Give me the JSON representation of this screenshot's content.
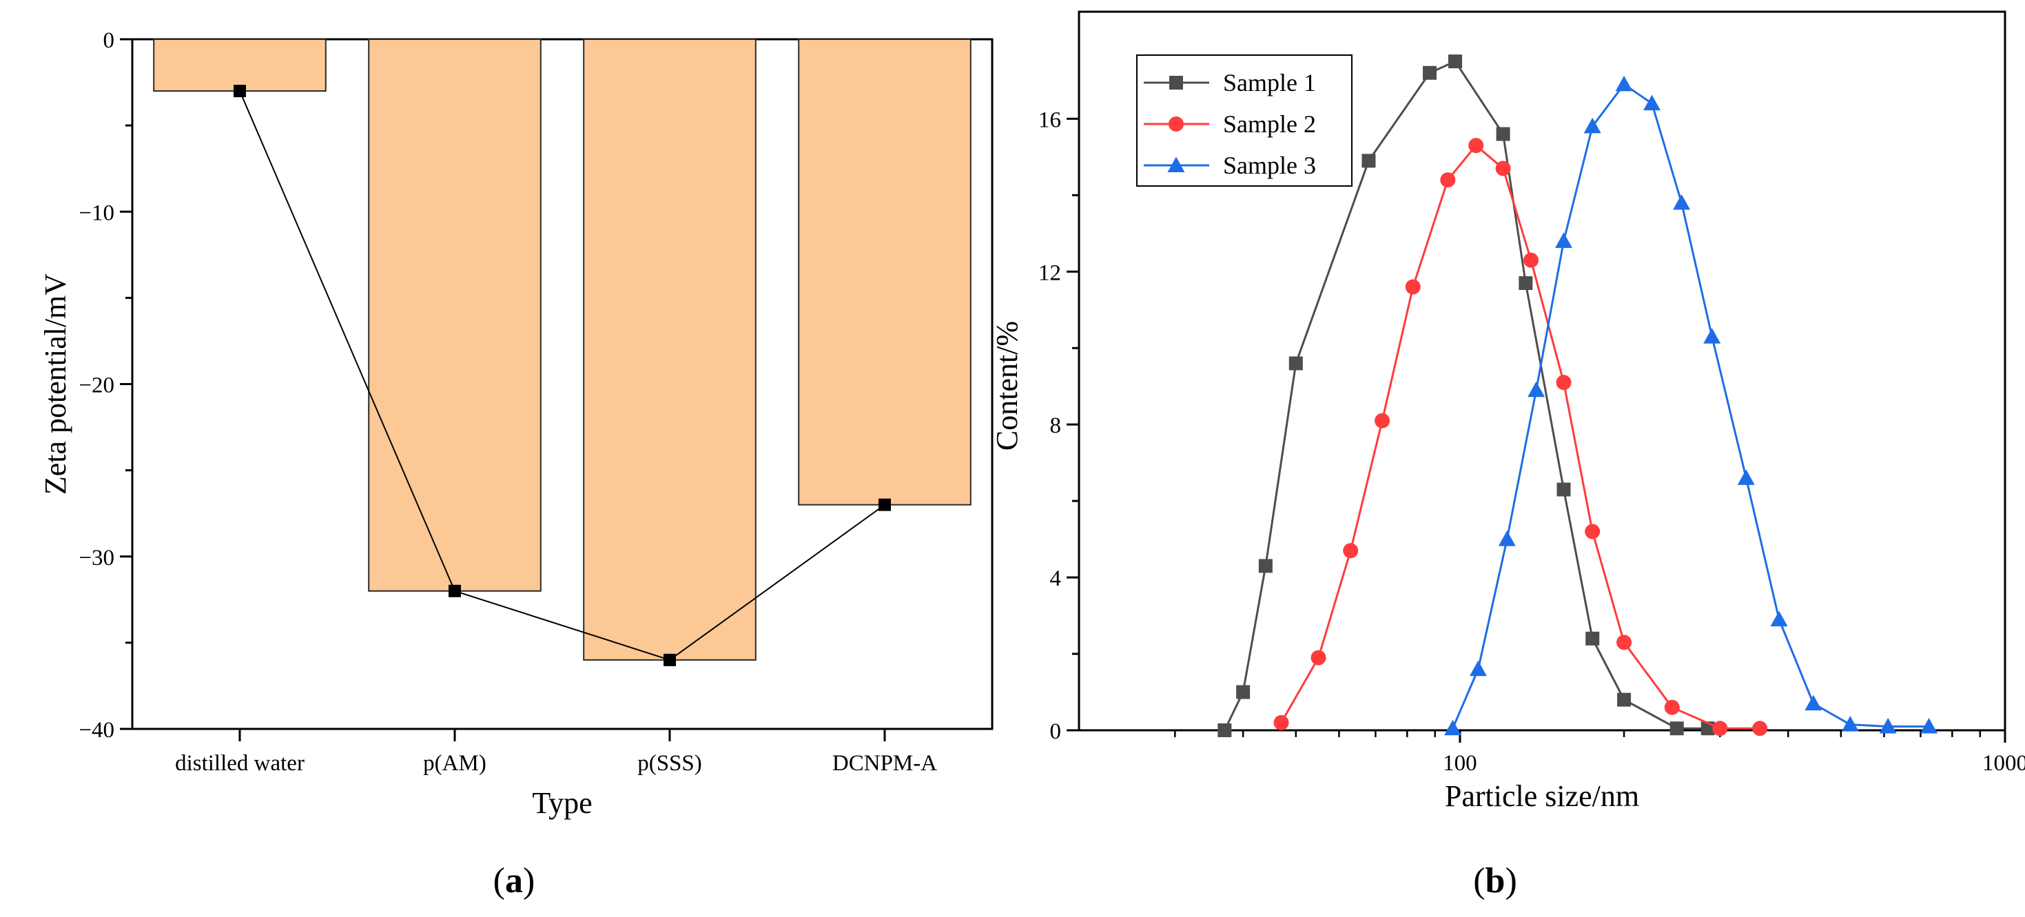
{
  "chart_data": [
    {
      "type": "bar",
      "title": "",
      "xlabel": "Type",
      "ylabel": "Zeta potential/mV",
      "panel_label_prefix": "(",
      "panel_label_letter": "a",
      "panel_label_suffix": ")",
      "categories": [
        "distilled water",
        "p(AM)",
        "p(SSS)",
        "DCNPM-A"
      ],
      "values": [
        -3,
        -32,
        -36,
        -27
      ],
      "ylim": [
        -40,
        0
      ],
      "yticks": [
        0,
        -10,
        -20,
        -30,
        -40
      ],
      "ytick_labels": [
        "0",
        "−10",
        "−20",
        "−30",
        "−40"
      ],
      "overlay_line": true,
      "colors": {
        "bar_fill": "#fcc895",
        "bar_stroke": "#2a2a2a",
        "line": "#000000",
        "marker": "#000000"
      }
    },
    {
      "type": "line",
      "title": "",
      "xlabel": "Particle size/nm",
      "ylabel": "Content/%",
      "panel_label_prefix": "(",
      "panel_label_letter": "b",
      "panel_label_suffix": ")",
      "xscale": "log",
      "xlim": [
        20,
        1000
      ],
      "ylim": [
        0,
        18.8
      ],
      "xticks": [
        100,
        1000
      ],
      "xtick_labels": [
        "100",
        "1000"
      ],
      "xminor": [
        30,
        40,
        50,
        60,
        70,
        80,
        90,
        200,
        300,
        400,
        500,
        600,
        700,
        800,
        900
      ],
      "yticks": [
        0,
        4,
        8,
        12,
        16
      ],
      "ytick_labels": [
        "0",
        "4",
        "8",
        "12",
        "16"
      ],
      "legend_position": "top-left",
      "series": [
        {
          "name": "Sample 1",
          "color": "#4d4d4d",
          "marker": "square",
          "x": [
            37,
            40,
            44,
            50,
            68,
            88,
            98,
            120,
            132,
            155,
            175,
            200,
            250,
            285
          ],
          "y": [
            0,
            1.0,
            4.3,
            9.6,
            14.9,
            17.2,
            17.5,
            15.6,
            11.7,
            6.3,
            2.4,
            0.8,
            0.05,
            0.05
          ]
        },
        {
          "name": "Sample 2",
          "color": "#ff3b3b",
          "marker": "circle",
          "x": [
            47,
            55,
            63,
            72,
            82,
            95,
            107,
            120,
            135,
            155,
            175,
            200,
            245,
            300,
            355
          ],
          "y": [
            0.2,
            1.9,
            4.7,
            8.1,
            11.6,
            14.4,
            15.3,
            14.7,
            12.3,
            9.1,
            5.2,
            2.3,
            0.6,
            0.05,
            0.05
          ]
        },
        {
          "name": "Sample 3",
          "color": "#1d6ee6",
          "marker": "triangle",
          "x": [
            97,
            108,
            122,
            138,
            155,
            175,
            200,
            225,
            255,
            290,
            335,
            385,
            445,
            520,
            610,
            725
          ],
          "y": [
            0.05,
            1.6,
            5.0,
            8.9,
            12.8,
            15.8,
            16.9,
            16.4,
            13.8,
            10.3,
            6.6,
            2.9,
            0.7,
            0.15,
            0.1,
            0.1
          ]
        }
      ]
    }
  ]
}
